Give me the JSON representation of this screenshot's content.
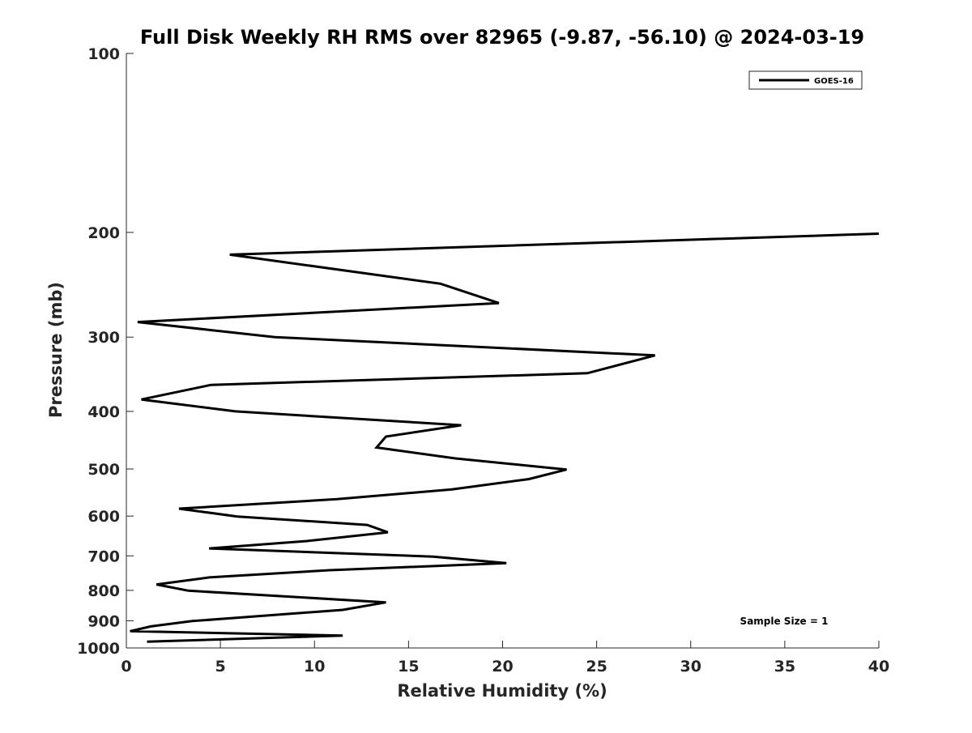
{
  "chart_data": {
    "type": "line",
    "title": "Full Disk Weekly RH RMS over 82965 (-9.87, -56.10) @ 2024-03-19",
    "xlabel": "Relative Humidity (%)",
    "ylabel": "Pressure (mb)",
    "xlim": [
      0,
      40
    ],
    "ylim": [
      100,
      1000
    ],
    "y_scale": "log",
    "y_reversed": true,
    "grid": false,
    "legend_position": "top-right",
    "x_ticks": [
      0,
      5,
      10,
      15,
      20,
      25,
      30,
      35,
      40
    ],
    "y_ticks": [
      100,
      200,
      300,
      400,
      500,
      600,
      700,
      800,
      900,
      1000
    ],
    "annotation": "Sample Size = 1",
    "series": [
      {
        "name": "GOES-16",
        "color": "#000000",
        "points": [
          {
            "x": 40.0,
            "y": 201
          },
          {
            "x": 5.5,
            "y": 218
          },
          {
            "x": 16.7,
            "y": 244
          },
          {
            "x": 19.8,
            "y": 263
          },
          {
            "x": 0.6,
            "y": 283
          },
          {
            "x": 7.9,
            "y": 300
          },
          {
            "x": 28.1,
            "y": 322
          },
          {
            "x": 24.5,
            "y": 345
          },
          {
            "x": 4.5,
            "y": 361
          },
          {
            "x": 0.8,
            "y": 382
          },
          {
            "x": 5.8,
            "y": 400
          },
          {
            "x": 17.8,
            "y": 422
          },
          {
            "x": 13.8,
            "y": 441
          },
          {
            "x": 13.3,
            "y": 460
          },
          {
            "x": 17.5,
            "y": 480
          },
          {
            "x": 23.4,
            "y": 501
          },
          {
            "x": 21.4,
            "y": 520
          },
          {
            "x": 17.3,
            "y": 541
          },
          {
            "x": 11.2,
            "y": 562
          },
          {
            "x": 2.8,
            "y": 583
          },
          {
            "x": 5.9,
            "y": 601
          },
          {
            "x": 12.8,
            "y": 621
          },
          {
            "x": 13.9,
            "y": 639
          },
          {
            "x": 9.6,
            "y": 661
          },
          {
            "x": 4.4,
            "y": 680
          },
          {
            "x": 16.3,
            "y": 702
          },
          {
            "x": 20.2,
            "y": 720
          },
          {
            "x": 10.8,
            "y": 740
          },
          {
            "x": 4.4,
            "y": 761
          },
          {
            "x": 1.6,
            "y": 782
          },
          {
            "x": 3.3,
            "y": 801
          },
          {
            "x": 13.8,
            "y": 838
          },
          {
            "x": 11.5,
            "y": 863
          },
          {
            "x": 3.5,
            "y": 901
          },
          {
            "x": 1.3,
            "y": 920
          },
          {
            "x": 0.2,
            "y": 937
          },
          {
            "x": 11.5,
            "y": 953
          },
          {
            "x": 1.1,
            "y": 976
          }
        ]
      }
    ]
  }
}
